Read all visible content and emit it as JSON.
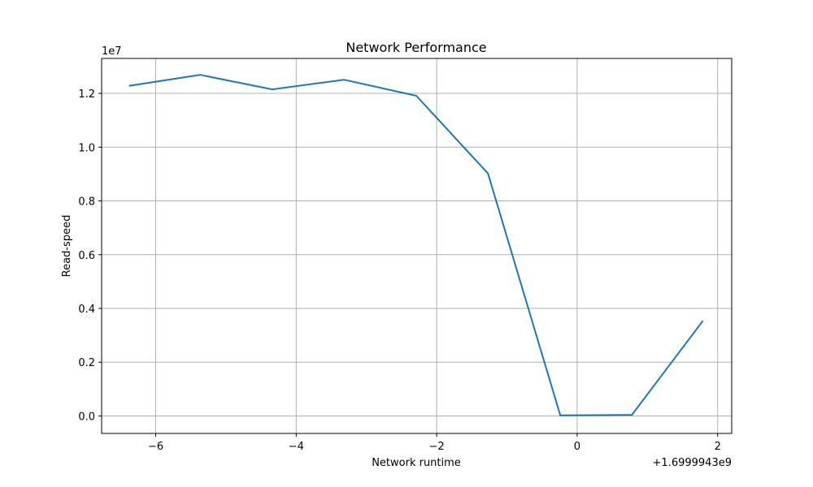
{
  "chart_data": {
    "type": "line",
    "title": "Network Performance",
    "xlabel": "Network runtime",
    "ylabel": "Read-speed",
    "x_offset_label": "+1.6999943e9",
    "y_scale_label": "1e7",
    "xlim": [
      -6.77,
      2.2
    ],
    "ylim": [
      -0.065,
      1.33
    ],
    "xticks": [
      -6,
      -4,
      -2,
      0,
      2
    ],
    "xtick_labels": [
      "−6",
      "−4",
      "−2",
      "0",
      "2"
    ],
    "yticks": [
      0.0,
      0.2,
      0.4,
      0.6,
      0.8,
      1.0,
      1.2
    ],
    "ytick_labels": [
      "0.0",
      "0.2",
      "0.4",
      "0.6",
      "0.8",
      "1.0",
      "1.2"
    ],
    "grid": true,
    "series": [
      {
        "color": "#1f77b4",
        "x": [
          -6.38,
          -5.37,
          -4.34,
          -3.32,
          -2.29,
          -1.27,
          -0.24,
          0.78,
          1.79
        ],
        "y": [
          1.228,
          1.269,
          1.215,
          1.251,
          1.191,
          0.902,
          0.002,
          0.004,
          0.354
        ]
      }
    ]
  }
}
